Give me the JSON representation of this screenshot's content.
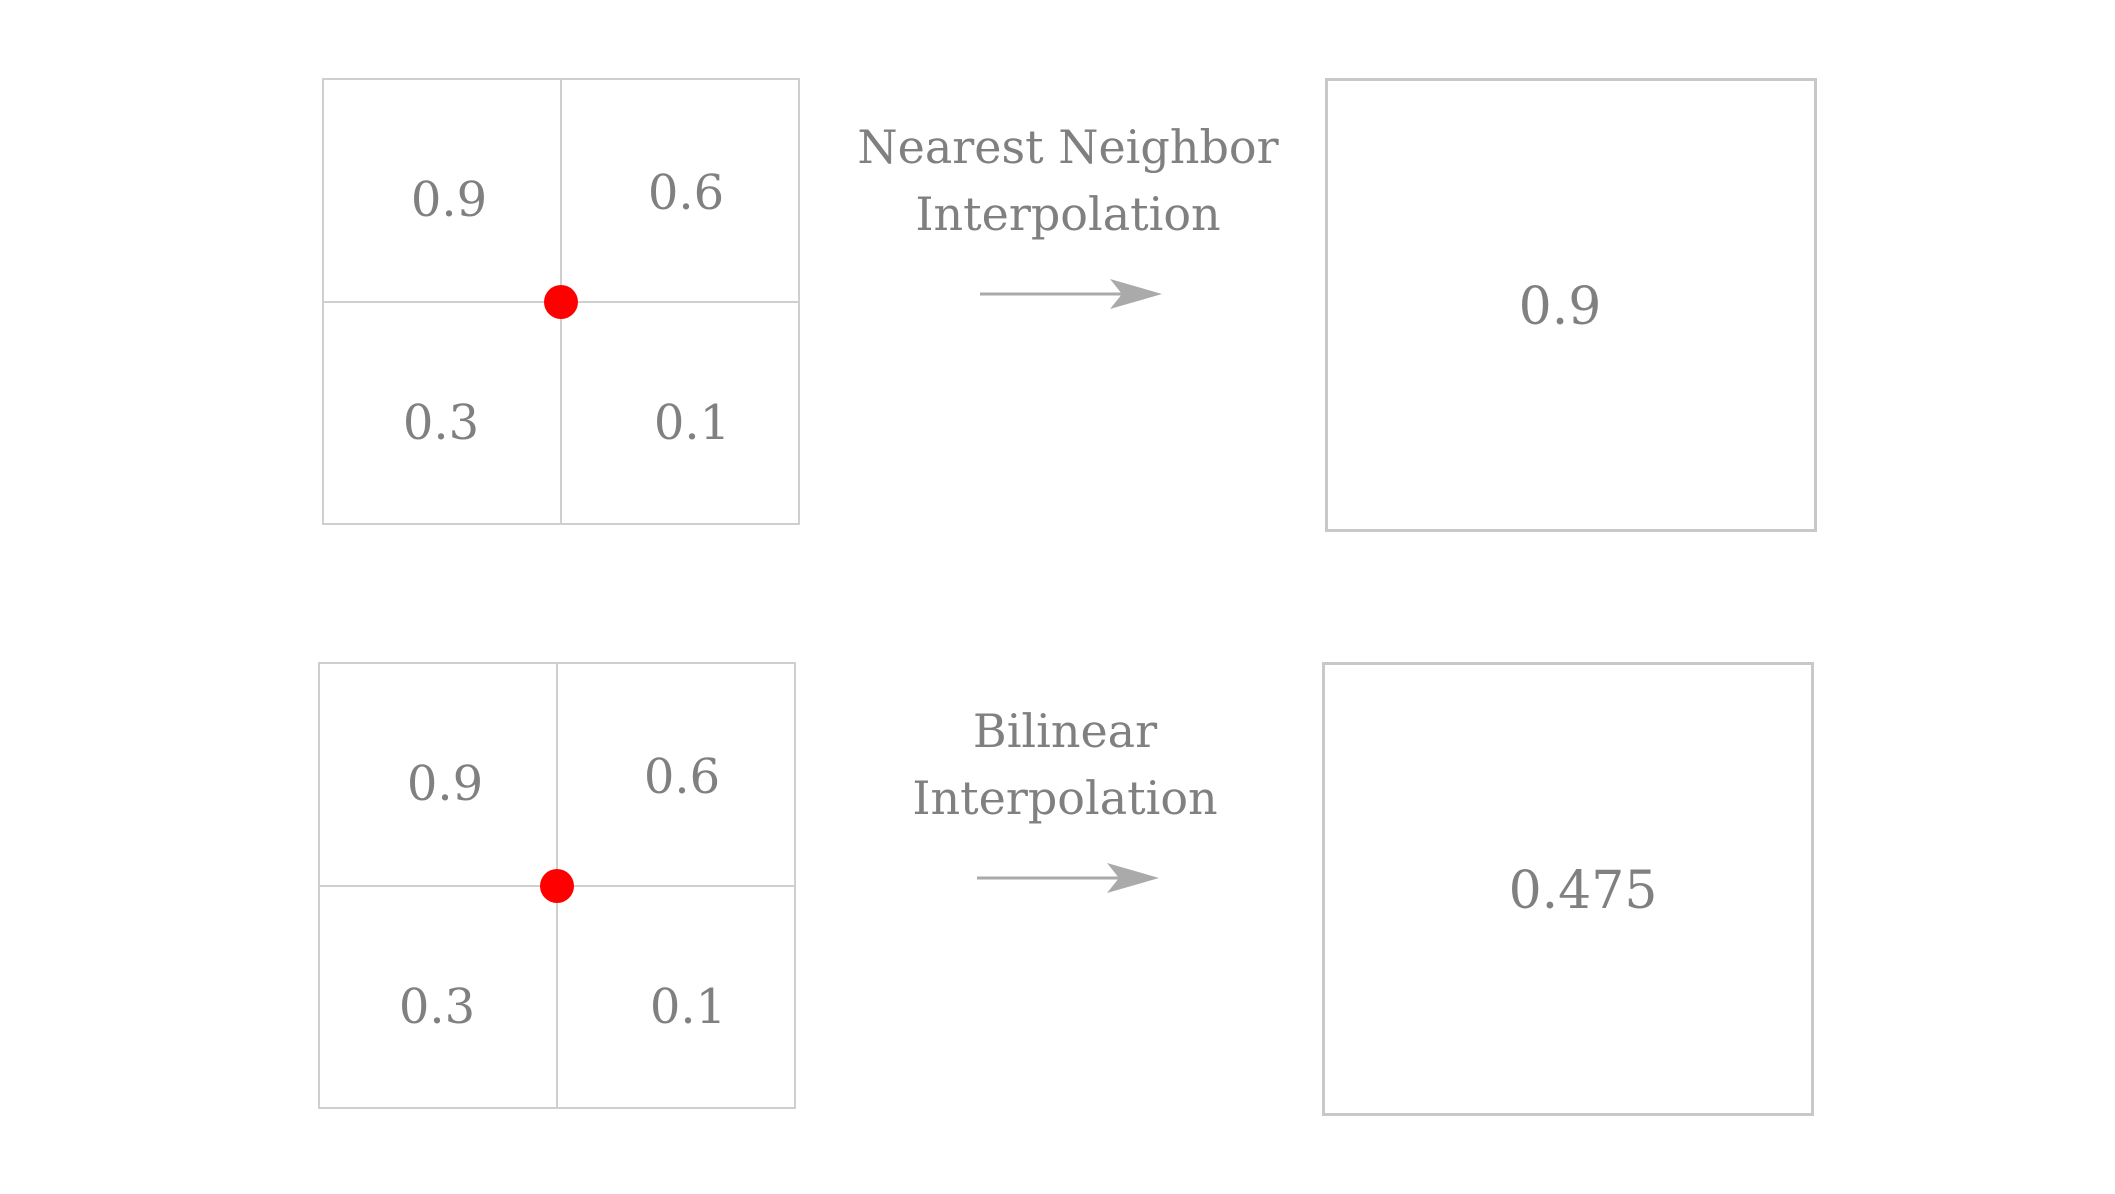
{
  "top": {
    "grid": {
      "top_left": "0.9",
      "top_right": "0.6",
      "bottom_left": "0.3",
      "bottom_right": "0.1"
    },
    "caption_line1": "Nearest Neighbor",
    "caption_line2": "Interpolation",
    "result": "0.9"
  },
  "bottom": {
    "grid": {
      "top_left": "0.9",
      "top_right": "0.6",
      "bottom_left": "0.3",
      "bottom_right": "0.1"
    },
    "caption_line1": "Bilinear",
    "caption_line2": "Interpolation",
    "result": "0.475"
  },
  "colors": {
    "text": "#808080",
    "grid_line": "#cfcfcf",
    "sample_point": "#ff0000",
    "arrow": "#aaaaaa"
  }
}
